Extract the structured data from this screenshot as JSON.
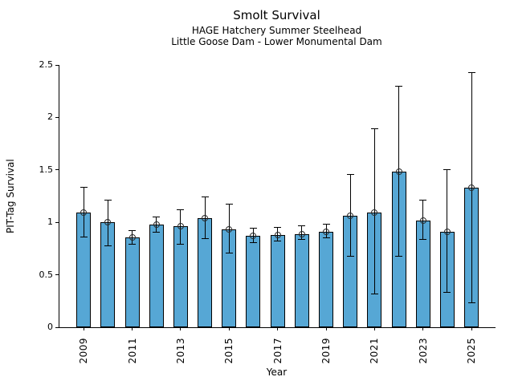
{
  "chart_data": {
    "type": "bar",
    "title": "Smolt Survival",
    "subtitle1": "HAGE Hatchery Summer Steelhead",
    "subtitle2": "Little Goose Dam - Lower Monumental Dam",
    "xlabel": "Year",
    "ylabel": "PIT-Tag Survival",
    "ylim": [
      0,
      2.5
    ],
    "yticks": [
      0,
      0.5,
      1,
      1.5,
      2,
      2.5
    ],
    "ytick_labels": [
      "0",
      "0.5",
      "1",
      "1.5",
      "2",
      "2.5"
    ],
    "categories": [
      2009,
      2010,
      2011,
      2012,
      2013,
      2014,
      2015,
      2016,
      2017,
      2018,
      2019,
      2020,
      2021,
      2022,
      2023,
      2024,
      2025
    ],
    "xtick_labels": [
      "2009",
      "2011",
      "2013",
      "2015",
      "2017",
      "2019",
      "2021",
      "2023",
      "2025"
    ],
    "values": [
      1.09,
      1.0,
      0.86,
      0.98,
      0.96,
      1.04,
      0.93,
      0.87,
      0.88,
      0.89,
      0.91,
      1.06,
      1.09,
      1.48,
      1.02,
      0.91,
      1.33
    ],
    "error_low": [
      0.86,
      0.77,
      0.79,
      0.9,
      0.79,
      0.84,
      0.7,
      0.8,
      0.82,
      0.83,
      0.85,
      0.67,
      0.31,
      0.67,
      0.83,
      0.33,
      0.23
    ],
    "error_high": [
      1.33,
      1.21,
      0.92,
      1.05,
      1.12,
      1.24,
      1.17,
      0.94,
      0.95,
      0.96,
      0.98,
      1.45,
      1.89,
      2.29,
      1.21,
      1.5,
      2.42
    ],
    "grid": false,
    "legend": false,
    "colors": {
      "bar_fill": "#56A7D5",
      "bar_edge": "#000000",
      "error_bar": "#000000",
      "marker_edge": "#2a2a2a",
      "text": "#000000",
      "background": "#ffffff"
    },
    "marker": "open-circle",
    "error_caps": true
  }
}
